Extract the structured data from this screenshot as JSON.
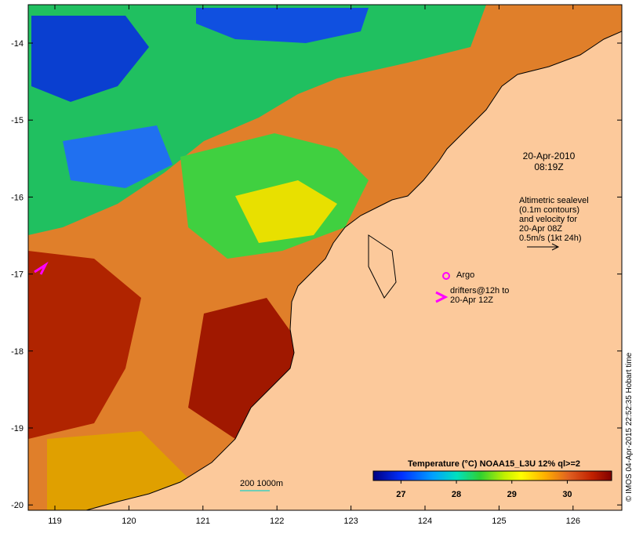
{
  "map": {
    "date_label": "20-Apr-2010",
    "time_label": "08:19Z",
    "altimetry_note": [
      "Altimetric sealevel",
      "(0.1m contours)",
      "and velocity for",
      "20-Apr 08Z",
      "0.5m/s (1kt 24h)"
    ],
    "argo_label": "Argo",
    "drifters_note": [
      "drifters@12h to",
      "20-Apr 12Z"
    ],
    "depth_label": "200  1000m",
    "credit": "© IMOS 04-Apr-2015 22:52:35 Hobart time",
    "lon_ticks": [
      "119",
      "120",
      "121",
      "122",
      "123",
      "124",
      "125",
      "126"
    ],
    "lat_ticks": [
      "-14",
      "-15",
      "-16",
      "-17",
      "-18",
      "-19",
      "-20"
    ],
    "land_color": "#fcc99b",
    "marker_color": "#ff00ff",
    "contour_color": "#40d0c0"
  },
  "colorbar": {
    "title": "Temperature (°C) NOAA15_L3U 12% ql>=2",
    "ticks": [
      "27",
      "28",
      "29",
      "30"
    ],
    "min": 26.5,
    "max": 30.8
  }
}
